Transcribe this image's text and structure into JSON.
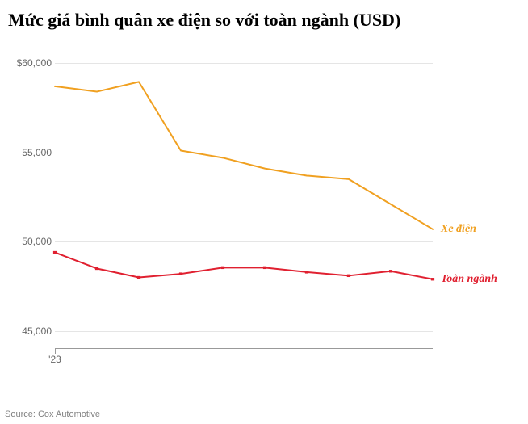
{
  "chart": {
    "type": "line",
    "title": "Mức giá bình quân xe điện so với toàn ngành (USD)",
    "title_fontsize": 22,
    "title_fontweight": "bold",
    "title_fontfamily": "Georgia",
    "background_color": "#ffffff",
    "grid_color": "#e5e5e5",
    "axis_color": "#999999",
    "text_color": "#666666",
    "ylim": [
      44000,
      61000
    ],
    "yticks": [
      {
        "value": 60000,
        "label": "$60,000"
      },
      {
        "value": 55000,
        "label": "55,000"
      },
      {
        "value": 50000,
        "label": "50,000"
      },
      {
        "value": 45000,
        "label": "45,000"
      }
    ],
    "x_points": 10,
    "x_label": "'23",
    "x_label_index": 0,
    "series": [
      {
        "id": "xe_dien",
        "label": "Xe điện",
        "color": "#f0a020",
        "line_width": 2,
        "values": [
          58700,
          58400,
          58950,
          55100,
          54700,
          54100,
          53700,
          53500,
          52100,
          50700
        ]
      },
      {
        "id": "toan_nganh",
        "label": "Toàn ngành",
        "color": "#e02030",
        "line_width": 2,
        "values": [
          49400,
          48500,
          48000,
          48200,
          48550,
          48550,
          48300,
          48100,
          48350,
          47900
        ]
      }
    ],
    "label_fontsize": 14,
    "label_fontstyle": "italic",
    "axis_fontsize": 12,
    "source": "Source: Cox Automotive",
    "source_fontsize": 11,
    "source_color": "#808080"
  }
}
